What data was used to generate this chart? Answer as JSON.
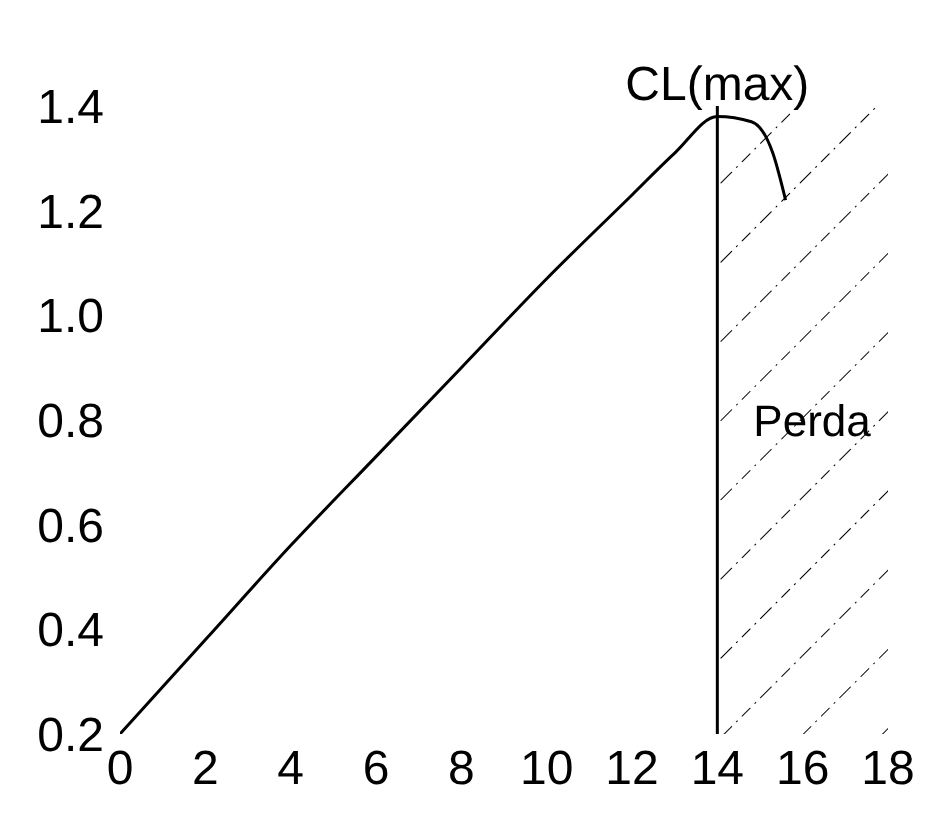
{
  "chart_data": {
    "type": "line",
    "x": [
      0,
      2,
      4,
      6,
      8,
      10,
      12,
      13,
      14,
      14.8,
      15.3,
      15.6
    ],
    "values": [
      0.2,
      0.38,
      0.56,
      0.73,
      0.9,
      1.07,
      1.23,
      1.31,
      1.38,
      1.37,
      1.31,
      1.22
    ],
    "color": "#000000",
    "marker": "none",
    "line_style": "solid",
    "xlim": [
      0,
      18
    ],
    "xticks": [
      0,
      2,
      4,
      6,
      8,
      10,
      12,
      14,
      16,
      18
    ],
    "ylim": [
      0.2,
      1.4
    ],
    "yticks": [
      {
        "value": 0.2,
        "label": "0.2"
      },
      {
        "value": 0.4,
        "label": "0.4"
      },
      {
        "value": 0.6,
        "label": "0.6"
      },
      {
        "value": 0.8,
        "label": "0.8"
      },
      {
        "value": 1,
        "label": "1.0"
      },
      {
        "value": 1.2,
        "label": "1.2"
      },
      {
        "value": 1.4,
        "label": "1.4"
      }
    ],
    "grid": false,
    "annotations": [
      {
        "text": "CL(max)",
        "x": 14,
        "y": 1.38
      }
    ],
    "ref_lines": [
      {
        "axis": "x",
        "value": 14,
        "color": "#000000"
      }
    ],
    "bands": [
      {
        "axis": "x",
        "from": 14,
        "to": 18,
        "label": "Perda",
        "color": "#000000"
      }
    ]
  }
}
